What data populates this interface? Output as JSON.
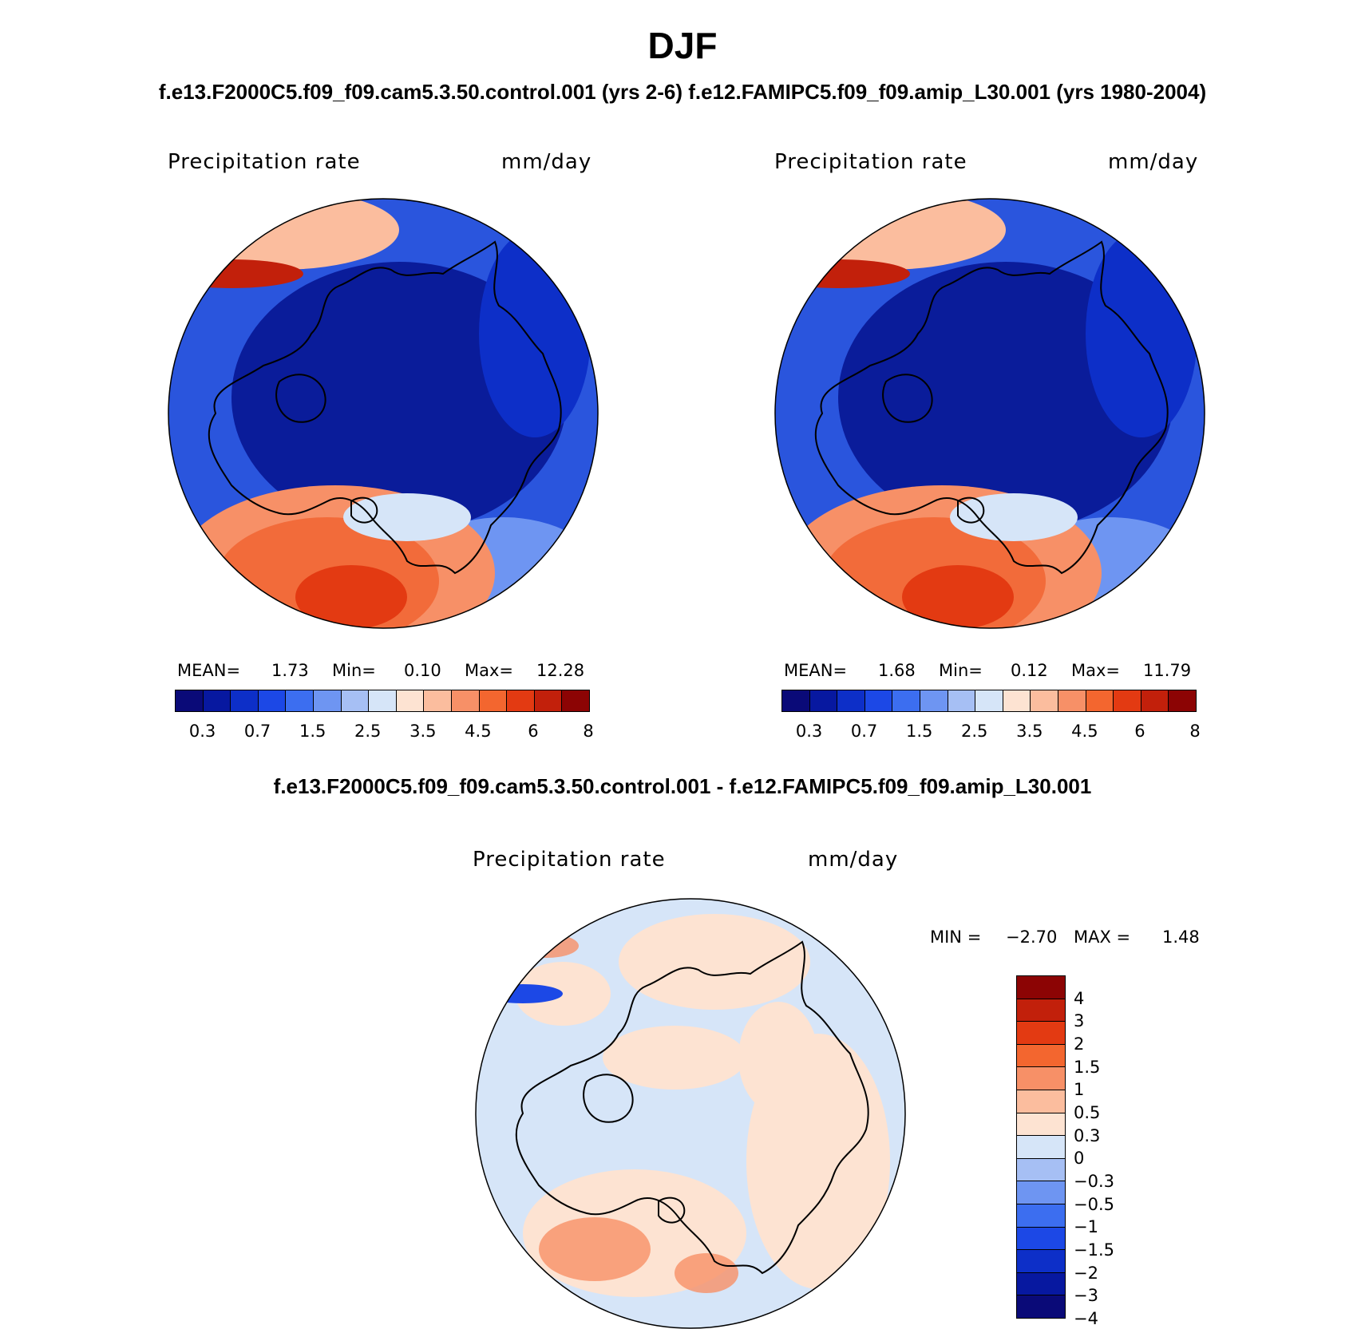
{
  "main_title": "DJF",
  "top_subtitle": "f.e13.F2000C5.f09_f09.cam5.3.50.control.001 (yrs 2-6)  f.e12.FAMIPC5.f09_f09.amip_L30.001 (yrs 1980-2004)",
  "diff_subtitle": "f.e13.F2000C5.f09_f09.cam5.3.50.control.001 - f.e12.FAMIPC5.f09_f09.amip_L30.001",
  "panels": [
    {
      "variable": "Precipitation  rate",
      "units": "mm/day",
      "mean_label": "MEAN=",
      "mean": "1.73",
      "min_label": "Min=",
      "min": "0.10",
      "max_label": "Max=",
      "max": "12.28",
      "map_style": "control"
    },
    {
      "variable": "Precipitation  rate",
      "units": "mm/day",
      "mean_label": "MEAN=",
      "mean": "1.68",
      "min_label": "Min=",
      "min": "0.12",
      "max_label": "Max=",
      "max": "11.79",
      "map_style": "amip"
    }
  ],
  "abs_colorbar": {
    "colors": [
      "#0a0a78",
      "#0718a0",
      "#0d2fc8",
      "#1c48e6",
      "#3c6ef0",
      "#6e95f2",
      "#a6bff4",
      "#d6e5f8",
      "#fde3d2",
      "#fbbd9e",
      "#f79067",
      "#f3662f",
      "#e33a12",
      "#c2200b",
      "#8c0404"
    ],
    "tick_labels": [
      "0.3",
      "0.7",
      "1.5",
      "2.5",
      "3.5",
      "4.5",
      "6",
      "8"
    ]
  },
  "diff_panel": {
    "variable": "Precipitation  rate",
    "units": "mm/day",
    "min_label": "MIN =",
    "min": "−2.70",
    "max_label": "MAX =",
    "max": "1.48"
  },
  "diff_colorbar": {
    "colors": [
      "#8c0404",
      "#c2200b",
      "#e33a12",
      "#f3662f",
      "#f79067",
      "#fbbd9e",
      "#fde3d2",
      "#d6e5f8",
      "#a6bff4",
      "#6e95f2",
      "#3c6ef0",
      "#1c48e6",
      "#0d2fc8",
      "#0718a0",
      "#0a0a78"
    ],
    "tick_labels": [
      "4",
      "3",
      "2",
      "1.5",
      "1",
      "0.5",
      "0.3",
      "0",
      "−0.3",
      "−0.5",
      "−1",
      "−1.5",
      "−2",
      "−3",
      "−4"
    ]
  },
  "legend_colors": {
    "ocean_deep": "#0a1c9a",
    "ocean_mid": "#2a55dd",
    "warm": "#f26b3a",
    "diff_bg": "#d6e5f8",
    "diff_warm": "#fde3d2"
  }
}
